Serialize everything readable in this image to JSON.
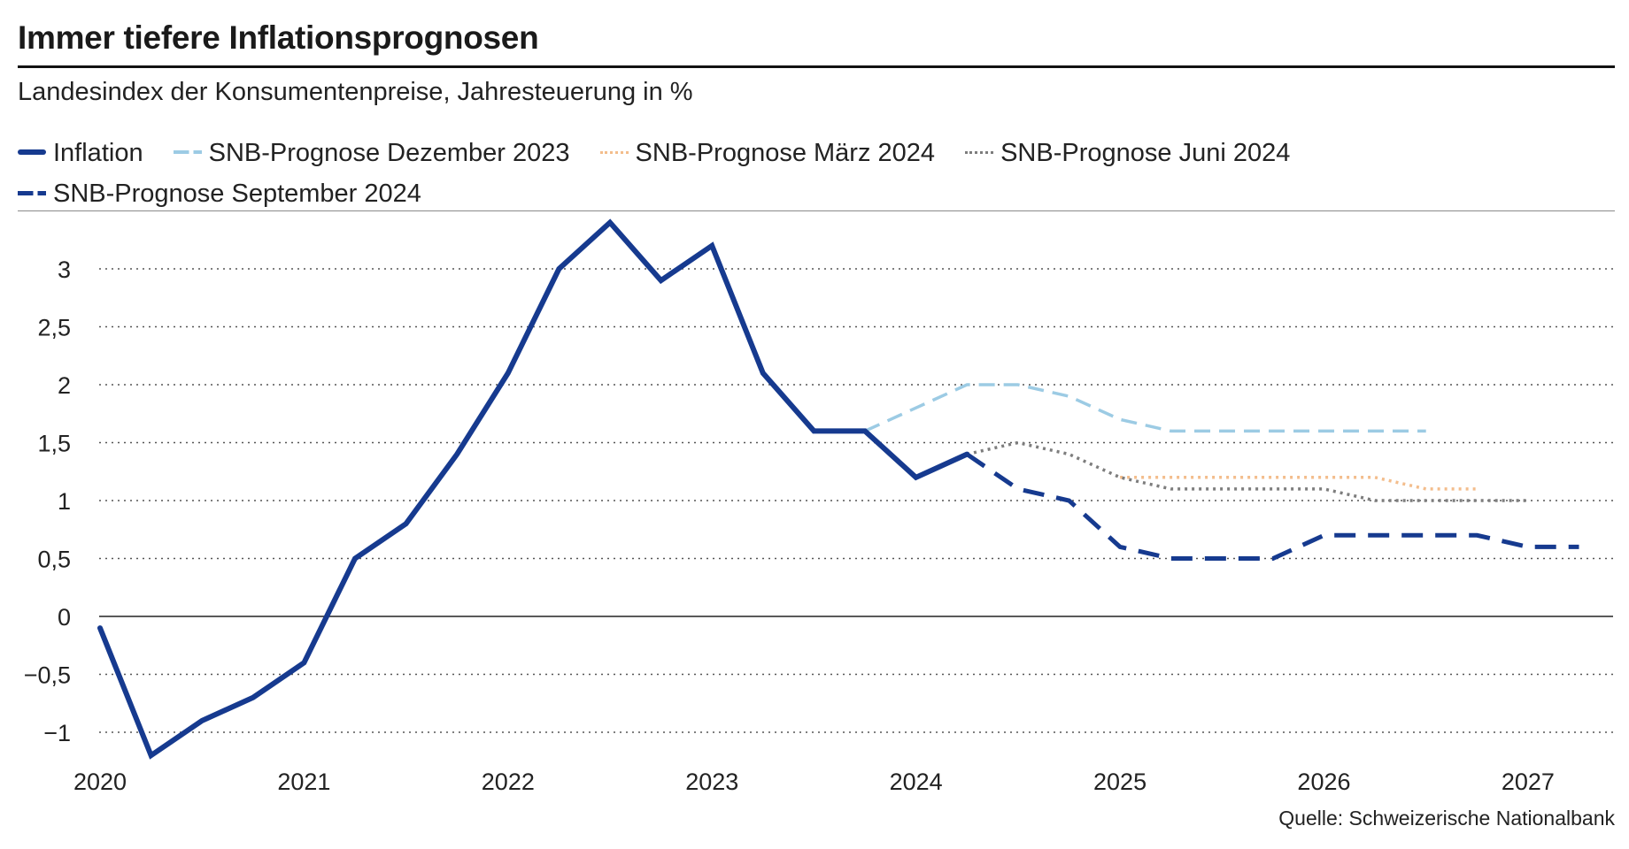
{
  "header": {
    "title": "Immer tiefere Inflationsprognosen",
    "subtitle": "Landesindex der Konsumentenpreise, Jahresteuerung in %"
  },
  "source": "Quelle: Schweizerische Nationalbank",
  "chart_data": {
    "type": "line",
    "title": "Immer tiefere Inflationsprognosen",
    "subtitle": "Landesindex der Konsumentenpreise, Jahresteuerung in %",
    "xlabel": "",
    "ylabel": "",
    "xlim": [
      2020,
      2027.3
    ],
    "ylim": [
      -1.2,
      3.4
    ],
    "grid": true,
    "legend": "top-left",
    "yticks": [
      {
        "value": -1,
        "label": "−1"
      },
      {
        "value": -0.5,
        "label": "−0,5"
      },
      {
        "value": 0,
        "label": "0"
      },
      {
        "value": 0.5,
        "label": "0,5"
      },
      {
        "value": 1,
        "label": "1"
      },
      {
        "value": 1.5,
        "label": "1,5"
      },
      {
        "value": 2,
        "label": "2"
      },
      {
        "value": 2.5,
        "label": "2,5"
      },
      {
        "value": 3,
        "label": "3"
      }
    ],
    "xticks": [
      {
        "value": 2020,
        "label": "2020"
      },
      {
        "value": 2021,
        "label": "2021"
      },
      {
        "value": 2022,
        "label": "2022"
      },
      {
        "value": 2023,
        "label": "2023"
      },
      {
        "value": 2024,
        "label": "2024"
      },
      {
        "value": 2025,
        "label": "2025"
      },
      {
        "value": 2026,
        "label": "2026"
      },
      {
        "value": 2027,
        "label": "2027"
      }
    ],
    "series": [
      {
        "name": "Inflation",
        "color": "#163a8f",
        "style": "solid",
        "x": [
          2020.0,
          2020.25,
          2020.5,
          2020.75,
          2021.0,
          2021.25,
          2021.5,
          2021.75,
          2022.0,
          2022.25,
          2022.5,
          2022.75,
          2023.0,
          2023.25,
          2023.5,
          2023.75,
          2024.0,
          2024.25
        ],
        "y": [
          -0.1,
          -1.2,
          -0.9,
          -0.7,
          -0.4,
          0.5,
          0.8,
          1.4,
          2.1,
          3.0,
          3.4,
          2.9,
          3.2,
          2.1,
          1.6,
          1.6,
          1.2,
          1.4
        ]
      },
      {
        "name": "SNB-Prognose Dezember 2023",
        "color": "#9ccbe4",
        "style": "dashed",
        "x": [
          2023.75,
          2024.0,
          2024.25,
          2024.5,
          2024.75,
          2025.0,
          2025.25,
          2025.5,
          2025.75,
          2026.0,
          2026.25,
          2026.5
        ],
        "y": [
          1.6,
          1.8,
          2.0,
          2.0,
          1.9,
          1.7,
          1.6,
          1.6,
          1.6,
          1.6,
          1.6,
          1.6
        ]
      },
      {
        "name": "SNB-Prognose März 2024",
        "color": "#f3bd8c",
        "style": "dotted",
        "x": [
          2025.0,
          2025.25,
          2025.5,
          2025.75,
          2026.0,
          2026.25,
          2026.5,
          2026.75
        ],
        "y": [
          1.2,
          1.2,
          1.2,
          1.2,
          1.2,
          1.2,
          1.1,
          1.1
        ]
      },
      {
        "name": "SNB-Prognose Juni 2024",
        "color": "#7d7d7d",
        "style": "dotted",
        "x": [
          2024.25,
          2024.5,
          2024.75,
          2025.0,
          2025.25,
          2025.5,
          2025.75,
          2026.0,
          2026.25,
          2026.5,
          2026.75,
          2027.0
        ],
        "y": [
          1.4,
          1.5,
          1.4,
          1.2,
          1.1,
          1.1,
          1.1,
          1.1,
          1.0,
          1.0,
          1.0,
          1.0
        ]
      },
      {
        "name": "SNB-Prognose September 2024",
        "color": "#163a8f",
        "style": "dashed-bold",
        "x": [
          2024.25,
          2024.5,
          2024.75,
          2025.0,
          2025.25,
          2025.5,
          2025.75,
          2026.0,
          2026.25,
          2026.5,
          2026.75,
          2027.0,
          2027.25
        ],
        "y": [
          1.4,
          1.1,
          1.0,
          0.6,
          0.5,
          0.5,
          0.5,
          0.7,
          0.7,
          0.7,
          0.7,
          0.6,
          0.6
        ]
      }
    ],
    "legend_labels": [
      "Inflation",
      "SNB-Prognose Dezember 2023",
      "SNB-Prognose März 2024",
      "SNB-Prognose Juni 2024",
      "SNB-Prognose September 2024"
    ]
  }
}
